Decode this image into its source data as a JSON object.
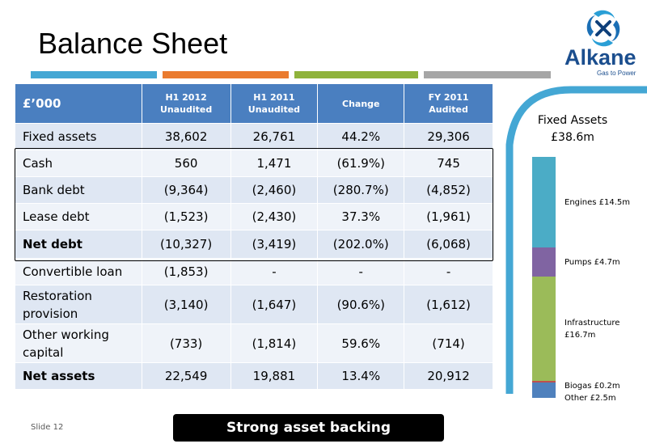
{
  "slide": {
    "title": "Balance Sheet",
    "slide_number": "Slide 12",
    "banner": "Strong asset backing"
  },
  "logo": {
    "name": "Alkane",
    "tagline": "Gas to Power",
    "icon": "alkane-swirl-icon"
  },
  "colors": {
    "header_blue": "#4a7fc0",
    "row_dark": "#dfe7f3",
    "row_light": "#eff3f9",
    "accent_blue": "#44a7d4",
    "accent_orange": "#ea7b2f",
    "accent_green": "#8fb33b",
    "accent_grey": "#a6a6a6"
  },
  "table": {
    "headers": [
      {
        "line1": "£’000",
        "line2": ""
      },
      {
        "line1": "H1 2012",
        "line2": "Unaudited"
      },
      {
        "line1": "H1 2011",
        "line2": "Unaudited"
      },
      {
        "line1": "Change",
        "line2": ""
      },
      {
        "line1": "FY 2011",
        "line2": "Audited"
      }
    ],
    "rows": [
      {
        "label": "Fixed assets",
        "h1_2012": "38,602",
        "h1_2011": "26,761",
        "change": "44.2%",
        "fy_2011": "29,306"
      },
      {
        "label": "Cash",
        "h1_2012": "560",
        "h1_2011": "1,471",
        "change": "(61.9%)",
        "fy_2011": "745"
      },
      {
        "label": "Bank debt",
        "h1_2012": "(9,364)",
        "h1_2011": "(2,460)",
        "change": "(280.7%)",
        "fy_2011": "(4,852)"
      },
      {
        "label": "Lease debt",
        "h1_2012": "(1,523)",
        "h1_2011": "(2,430)",
        "change": "37.3%",
        "fy_2011": "(1,961)"
      },
      {
        "label": "Net debt",
        "h1_2012": "(10,327)",
        "h1_2011": "(3,419)",
        "change": "(202.0%)",
        "fy_2011": "(6,068)"
      },
      {
        "label": "Convertible loan",
        "h1_2012": "(1,853)",
        "h1_2011": "-",
        "change": "-",
        "fy_2011": "-"
      },
      {
        "label": "Restoration provision",
        "h1_2012": "(3,140)",
        "h1_2011": "(1,647)",
        "change": "(90.6%)",
        "fy_2011": "(1,612)"
      },
      {
        "label": "Other working capital",
        "h1_2012": "(733)",
        "h1_2011": "(1,814)",
        "change": "59.6%",
        "fy_2011": "(714)"
      },
      {
        "label": "Net assets",
        "h1_2012": "22,549",
        "h1_2011": "19,881",
        "change": "13.4%",
        "fy_2011": "20,912"
      }
    ]
  },
  "fixed_assets": {
    "title_line1": "Fixed Assets",
    "title_line2": "£38.6m",
    "segments": [
      {
        "label": "Engines £14.5m",
        "value": 14.5,
        "color": "#4bacc6"
      },
      {
        "label": "Pumps £4.7m",
        "value": 4.7,
        "color": "#8064a2"
      },
      {
        "label": "Infrastructure £16.7m",
        "value": 16.7,
        "color": "#9bbb59"
      },
      {
        "label": "Biogas £0.2m",
        "value": 0.2,
        "color": "#c0504d"
      },
      {
        "label": "Other £2.5m",
        "value": 2.5,
        "color": "#4f81bd"
      }
    ]
  }
}
